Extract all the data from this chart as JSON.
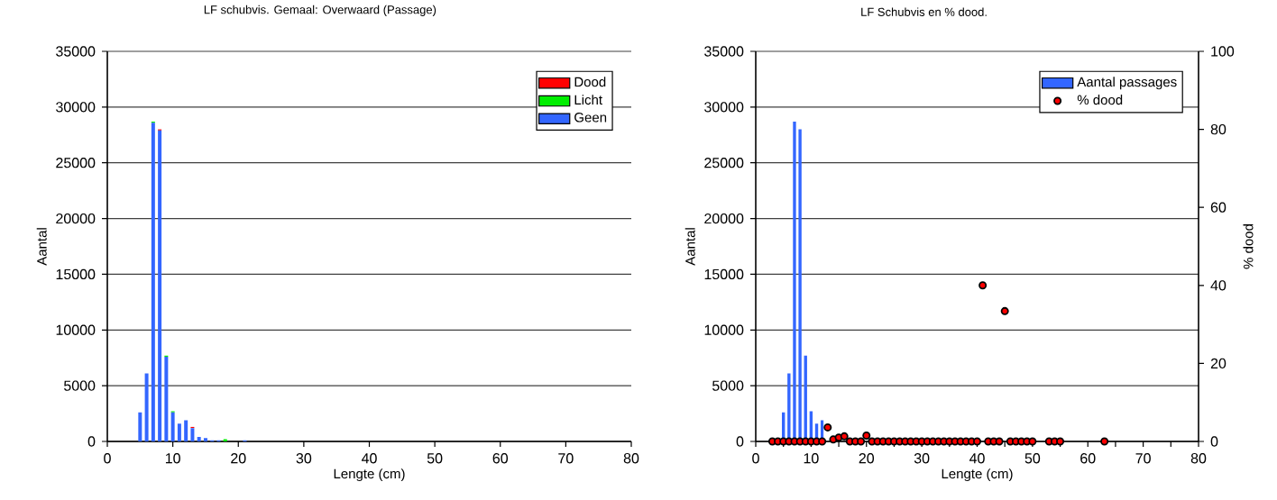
{
  "chart_data": [
    {
      "type": "bar",
      "stacked": true,
      "title": "LF  schubvis. Gemaal:  Overwaard (Passage)",
      "xlabel": "Lengte (cm)",
      "ylabel": "Aantal",
      "x": [
        5,
        6,
        7,
        8,
        9,
        10,
        11,
        12,
        13,
        14,
        15,
        16,
        17,
        18,
        19,
        20,
        21
      ],
      "series": [
        {
          "name": "Geen",
          "color": "#3366ff",
          "values": [
            2600,
            6100,
            28600,
            27900,
            7600,
            2600,
            1600,
            1900,
            1200,
            400,
            300,
            100,
            100,
            0,
            0,
            0,
            100
          ]
        },
        {
          "name": "Licht",
          "color": "#00ee00",
          "values": [
            0,
            0,
            100,
            0,
            100,
            100,
            0,
            0,
            0,
            0,
            0,
            0,
            0,
            200,
            0,
            0,
            0
          ]
        },
        {
          "name": "Dood",
          "color": "#ff0000",
          "values": [
            0,
            0,
            0,
            100,
            0,
            0,
            0,
            0,
            100,
            0,
            0,
            0,
            0,
            0,
            0,
            0,
            0
          ]
        }
      ],
      "xlim": [
        0,
        80
      ],
      "xticks": [
        0,
        10,
        20,
        30,
        40,
        50,
        60,
        70,
        80
      ],
      "ylim": [
        0,
        35000
      ],
      "yticks": [
        0,
        5000,
        10000,
        15000,
        20000,
        25000,
        30000,
        35000
      ],
      "grid": "y",
      "legend": "top right"
    },
    {
      "type": "bar",
      "title": "LF Schubvis en % dood.",
      "xlabel": "Lengte (cm)",
      "ylabel": "Aantal",
      "y2label": "% dood",
      "series": [
        {
          "name": "Aantal passages",
          "color": "#3366ff",
          "x": [
            5,
            6,
            7,
            8,
            9,
            10,
            11,
            12
          ],
          "values": [
            2600,
            6100,
            28700,
            28000,
            7700,
            2700,
            1600,
            1900
          ]
        },
        {
          "name": "% dood",
          "type": "scatter",
          "axis": "y2",
          "marker": "circle",
          "color": "#ff0000",
          "x": [
            3,
            4,
            5,
            6,
            7,
            8,
            9,
            10,
            11,
            12,
            13,
            14,
            15,
            16,
            17,
            18,
            19,
            20,
            21,
            22,
            23,
            24,
            25,
            26,
            27,
            28,
            29,
            30,
            31,
            32,
            33,
            34,
            35,
            36,
            37,
            38,
            39,
            40,
            41,
            42,
            43,
            44,
            45,
            46,
            47,
            48,
            49,
            50,
            53,
            54,
            55,
            63
          ],
          "values": [
            0,
            0,
            0,
            0,
            0,
            0,
            0,
            0,
            0,
            0,
            3.6,
            0.5,
            1.0,
            1.3,
            0,
            0,
            0,
            1.5,
            0,
            0,
            0,
            0,
            0,
            0,
            0,
            0,
            0,
            0,
            0,
            0,
            0,
            0,
            0,
            0,
            0,
            0,
            0,
            0,
            40,
            0,
            0,
            0,
            33.4,
            0,
            0,
            0,
            0,
            0,
            0,
            0,
            0,
            0
          ]
        }
      ],
      "xlim": [
        0,
        80
      ],
      "xticks": [
        0,
        {
          "value": 5,
          "label": null
        },
        10,
        {
          "value": 15,
          "label": null
        },
        20,
        {
          "value": 25,
          "label": null
        },
        30,
        {
          "value": 35,
          "label": null
        },
        40,
        {
          "value": 45,
          "label": null
        },
        50,
        {
          "value": 55,
          "label": null
        },
        60,
        {
          "value": 65,
          "label": null
        },
        70,
        {
          "value": 75,
          "label": null
        },
        80
      ],
      "ylim": [
        0,
        35000
      ],
      "yticks": [
        0,
        5000,
        10000,
        15000,
        20000,
        25000,
        30000,
        35000
      ],
      "y2lim": [
        0,
        100
      ],
      "y2ticks": [
        0,
        20,
        40,
        60,
        80,
        100
      ],
      "grid": "y",
      "legend": "top right"
    }
  ]
}
